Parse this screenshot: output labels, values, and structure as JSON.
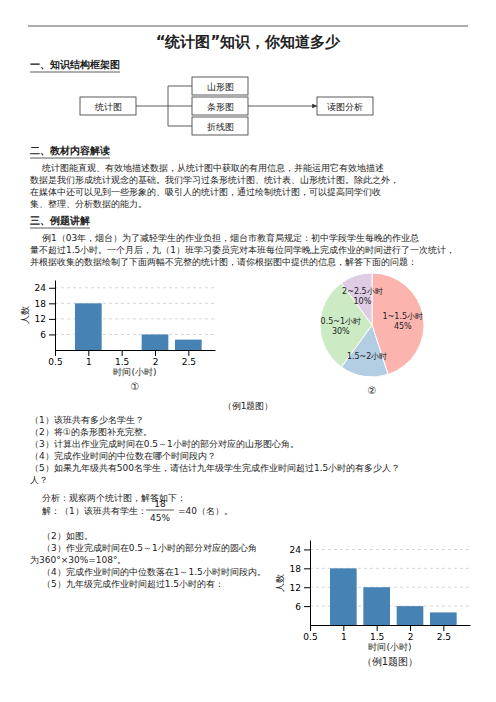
{
  "title": "“统计图”知识，你知道多少",
  "annotations": [
    "一、知识结构框架图",
    "统计图",
    "山形图",
    "条形图",
    "折线图",
    "读图分析",
    "二、教材内容解读",
    "统计图能直观、有效地描述数据，从统计图中获取的有用信息，并能运用它有效地描述",
    "数据是我们形成统计观念的基础。我们学习过条形统计图、统计表、山形统计图。除此之外，",
    "在媒体中还可以见到一些形象的、吸引人的统计图，通过绘制统计图，可以提高同学们收",
    "集、整理、分析数据的能力。",
    "三、例题讲解",
    "例1（03年，烟台）为了减轻学生的作业负担，烟台市教育局规定：初中学段学生每晚的作业总",
    "量不超过1.5小时。一个月后，九（1）班学习委员完对本班每位同学晚上完成作业的时间进行了一次统计，",
    "并根据收集的数据绘制了下面两幅不完整的统计图，请你根据图中提供的信息，解答下面的问题：",
    "（例1题图）",
    "（1）该班共有多少名学生？",
    "（2）将①的条形图补充完整。",
    "（3）计算出作业完成时间在0.5～1小时的部分对应的山形图心角。",
    "（4）完成作业时间的中位数在哪个时间段内？",
    "（5）如果九年级共有500名学生，请估计九年级学生完成作业时间超过1.5小时的有多少人？",
    "人？",
    "分析：观察两个统计图，解答如下：",
    "解：（1）该班共有学生：",
    "18",
    "45%",
    "=40（名）。",
    "（2）如图。",
    "（3）作业完成时间在0.5～1小时的部分对应的圆心角",
    "为360°×30%=108°。",
    "（4）完成作业时间的中位数落在1～1.5小时时间段内。",
    "（5）九年级完成作业时间超过1.5小时的有："
  ],
  "chart_data": [
    {
      "type": "bar",
      "x": [
        1,
        1.5,
        2,
        2.5
      ],
      "values": [
        18,
        0,
        6,
        4
      ],
      "color": "#4682b4",
      "xlim": [
        0.5,
        2.9
      ],
      "xticks": [
        0.5,
        1,
        1.5,
        2,
        2.5
      ],
      "ylim": [
        0,
        27
      ],
      "yticks": [
        6,
        12,
        18,
        24
      ],
      "grid": true,
      "xlabel": "时间(小时)",
      "ylabel": "人数",
      "annotations": [
        "①"
      ]
    },
    {
      "type": "pie",
      "categories": [
        "1~1.5小时",
        "1.5~2小时",
        "0.5~1小时",
        "2~2.5小时"
      ],
      "values": [
        45,
        15,
        30,
        10
      ],
      "value_labels": [
        "45%",
        null,
        "30%",
        "10%"
      ],
      "data_labels": true,
      "annotations": [
        "②"
      ]
    },
    {
      "type": "bar",
      "x": [
        1,
        1.5,
        2,
        2.5
      ],
      "values": [
        18,
        12,
        6,
        4
      ],
      "color": "#4682b4",
      "xlim": [
        0.5,
        2.9
      ],
      "xticks": [
        0.5,
        1,
        1.5,
        2,
        2.5
      ],
      "ylim": [
        0,
        27
      ],
      "yticks": [
        6,
        12,
        18,
        24
      ],
      "grid": true,
      "xlabel": "时间(小时)",
      "ylabel": "人数",
      "annotations": [
        "（例1题图）"
      ]
    }
  ]
}
